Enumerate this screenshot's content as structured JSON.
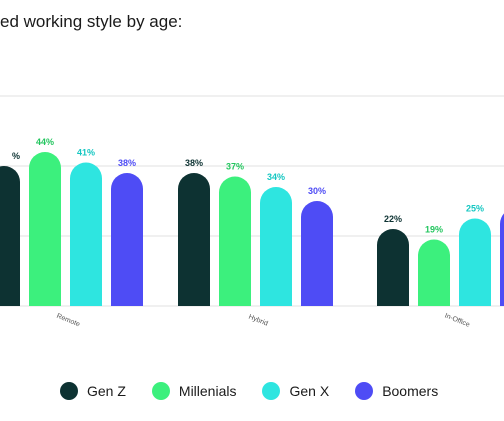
{
  "title": "ed working style by age:",
  "chart_data": {
    "type": "bar",
    "categories": [
      "Remote",
      "Hybrid",
      "In-Office"
    ],
    "series": [
      {
        "name": "Gen Z",
        "color": "#0d3232",
        "values": [
          40,
          38,
          22
        ]
      },
      {
        "name": "Millenials",
        "color": "#3cf07d",
        "values": [
          44,
          37,
          19
        ]
      },
      {
        "name": "Gen X",
        "color": "#2ee5e0",
        "values": [
          41,
          34,
          25
        ]
      },
      {
        "name": "Boomers",
        "color": "#4e4cf5",
        "values": [
          38,
          30,
          28
        ]
      }
    ],
    "value_labels": [
      [
        "%",
        "38%",
        "22%"
      ],
      [
        "44%",
        "37%",
        "19%"
      ],
      [
        "41%",
        "34%",
        "25%"
      ],
      [
        "38%",
        "30%",
        ""
      ]
    ],
    "ylim": [
      0,
      60
    ],
    "grid": true,
    "legend_position": "bottom"
  }
}
